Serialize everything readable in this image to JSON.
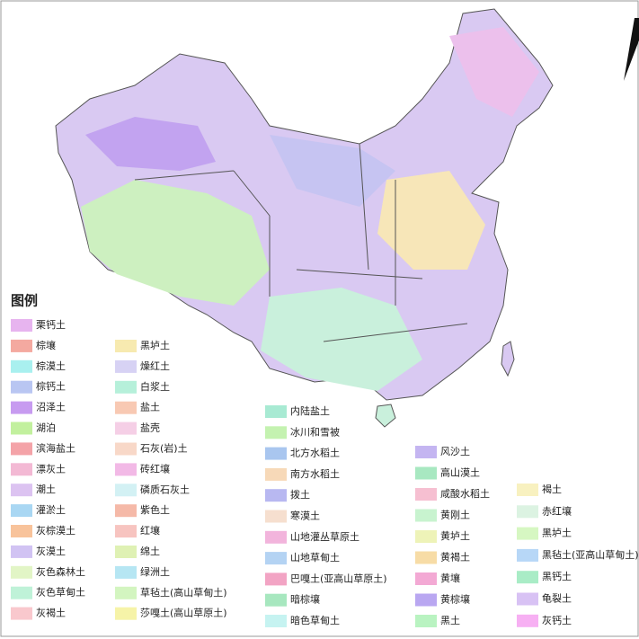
{
  "legend": {
    "title": "图例",
    "columns": [
      [
        {
          "label": "栗钙土",
          "color": "#e7b4ef"
        },
        {
          "label": "棕壤",
          "color": "#f4a9a0"
        },
        {
          "label": "棕漠土",
          "color": "#a9f0ef"
        },
        {
          "label": "棕钙土",
          "color": "#b9c6f2"
        },
        {
          "label": "沼泽土",
          "color": "#c79bf0"
        },
        {
          "label": "湖泊",
          "color": "#c2f09e"
        },
        {
          "label": "滨海盐土",
          "color": "#f4a3a8"
        },
        {
          "label": "漂灰土",
          "color": "#f3b9d4"
        },
        {
          "label": "潮土",
          "color": "#dcc3f1"
        },
        {
          "label": "灌淤土",
          "color": "#a9d7f3"
        },
        {
          "label": "灰棕漠土",
          "color": "#f8c39b"
        },
        {
          "label": "灰漠土",
          "color": "#d1c3f3"
        },
        {
          "label": "灰色森林土",
          "color": "#e2f5c6"
        },
        {
          "label": "灰色草甸土",
          "color": "#bff2d8"
        },
        {
          "label": "灰褐土",
          "color": "#f9c8cd"
        }
      ],
      [
        {
          "label": "黑垆土",
          "color": "#f7eab0"
        },
        {
          "label": "燥红土",
          "color": "#d7d2f4"
        },
        {
          "label": "白浆土",
          "color": "#b6f0da"
        },
        {
          "label": "盐土",
          "color": "#f8c9b3"
        },
        {
          "label": "盐壳",
          "color": "#f5cfe6"
        },
        {
          "label": "石灰(岩)土",
          "color": "#f8d8c8"
        },
        {
          "label": "砖红壤",
          "color": "#f2b9e6"
        },
        {
          "label": "磷质石灰土",
          "color": "#d3f1f4"
        },
        {
          "label": "紫色土",
          "color": "#f5b9a8"
        },
        {
          "label": "红壤",
          "color": "#f7c4c0"
        },
        {
          "label": "绵土",
          "color": "#dff1b4"
        },
        {
          "label": "绿洲土",
          "color": "#b6e6f3"
        },
        {
          "label": "草毡土(高山草甸土)",
          "color": "#d3f5c0"
        },
        {
          "label": "莎嘎土(高山草原土)",
          "color": "#f6f3a8"
        }
      ],
      [
        {
          "label": "内陆盐土",
          "color": "#a8ead3"
        },
        {
          "label": "冰川和雪被",
          "color": "#c4f2b0"
        },
        {
          "label": "北方水稻土",
          "color": "#a9c6ef"
        },
        {
          "label": "南方水稻土",
          "color": "#f7d9b8"
        },
        {
          "label": "拨土",
          "color": "#b8b8f1"
        },
        {
          "label": "寒漠土",
          "color": "#f6dfcf"
        },
        {
          "label": "山地灌丛草原土",
          "color": "#f2b4dc"
        },
        {
          "label": "山地草甸土",
          "color": "#b4d3f3"
        },
        {
          "label": "巴嘎土(亚高山草原土)",
          "color": "#f2a4c4"
        },
        {
          "label": "暗棕壤",
          "color": "#a7e7bf"
        },
        {
          "label": "暗色草甸土",
          "color": "#c6f3f1"
        }
      ],
      [
        {
          "label": "风沙土",
          "color": "#c4b5f1"
        },
        {
          "label": "高山漠土",
          "color": "#a8e8c1"
        },
        {
          "label": "咸酸水稻土",
          "color": "#f6bfd1"
        },
        {
          "label": "黄刚土",
          "color": "#c8f3cf"
        },
        {
          "label": "黄垆土",
          "color": "#eef3b8"
        },
        {
          "label": "黄褐土",
          "color": "#f7dca6"
        },
        {
          "label": "黄壤",
          "color": "#f3a9d4"
        },
        {
          "label": "黄棕壤",
          "color": "#b9a7f1"
        },
        {
          "label": "黑土",
          "color": "#b9f3c1"
        }
      ],
      [
        {
          "label": "褐土",
          "color": "#f8f1c0"
        },
        {
          "label": "赤红壤",
          "color": "#dcf3e2"
        },
        {
          "label": "黑垆土",
          "color": "#d6f7c2"
        },
        {
          "label": "黑毡土(亚高山草甸土)",
          "color": "#b7d7f7"
        },
        {
          "label": "黑钙土",
          "color": "#a9ecc6"
        },
        {
          "label": "龟裂土",
          "color": "#d8c2f4"
        },
        {
          "label": "灰钙土",
          "color": "#f7b0f3"
        }
      ]
    ]
  }
}
